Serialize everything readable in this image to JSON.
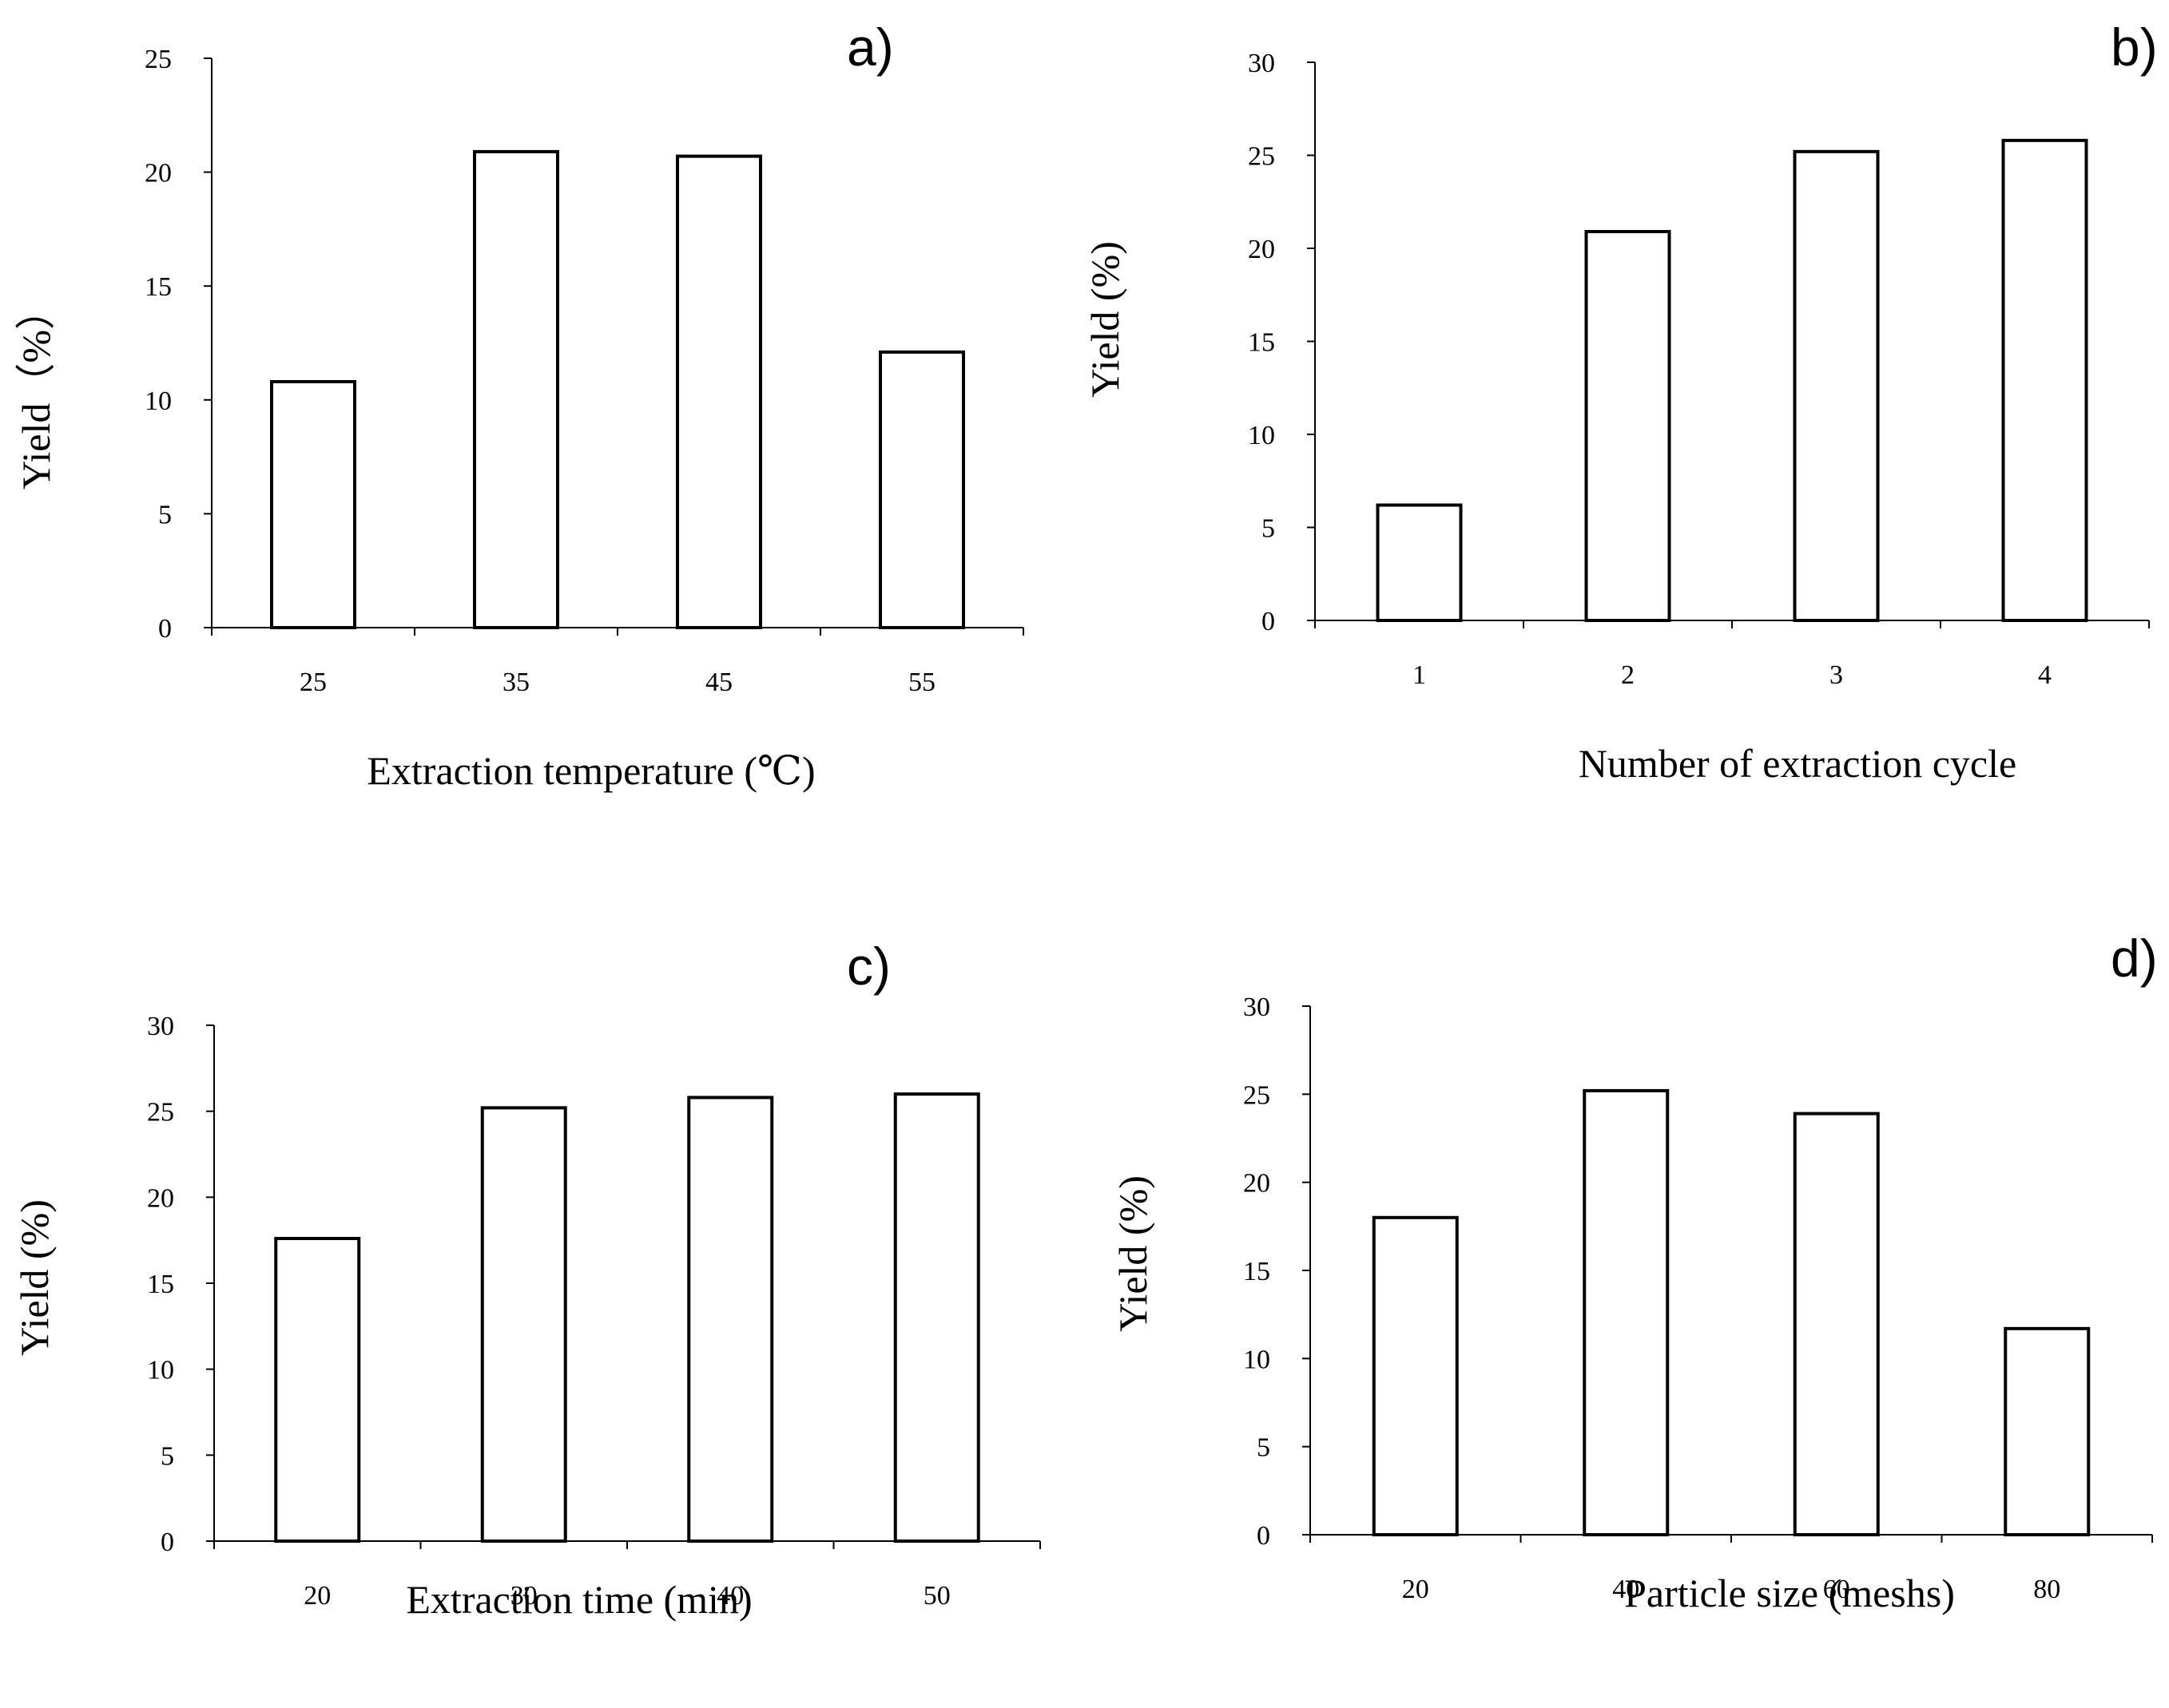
{
  "chart_data": [
    {
      "panel": "a)",
      "type": "bar",
      "categories": [
        "25",
        "35",
        "45",
        "55"
      ],
      "values": [
        10.8,
        20.9,
        20.7,
        12.1
      ],
      "xlabel": "Extraction temperature (℃)",
      "ylabel": "Yield（%）",
      "ylim": [
        0,
        25
      ],
      "yticks": [
        "0",
        "5",
        "10",
        "15",
        "20",
        "25"
      ],
      "grid": false
    },
    {
      "panel": "b)",
      "type": "bar",
      "categories": [
        "1",
        "2",
        "3",
        "4"
      ],
      "values": [
        6.2,
        20.9,
        25.2,
        25.8
      ],
      "xlabel": "Number of extraction cycle",
      "ylabel": "Yield (%)",
      "ylim": [
        0,
        30
      ],
      "yticks": [
        "0",
        "5",
        "10",
        "15",
        "20",
        "25",
        "30"
      ],
      "grid": false
    },
    {
      "panel": "c)",
      "type": "bar",
      "categories": [
        "20",
        "30",
        "40",
        "50"
      ],
      "values": [
        17.6,
        25.2,
        25.8,
        26.0
      ],
      "xlabel": "Extraction time (min)",
      "ylabel": "Yield (%)",
      "ylim": [
        0,
        30
      ],
      "yticks": [
        "0",
        "5",
        "10",
        "15",
        "20",
        "25",
        "30"
      ],
      "grid": false
    },
    {
      "panel": "d)",
      "type": "bar",
      "categories": [
        "20",
        "40",
        "60",
        "80"
      ],
      "values": [
        18.0,
        25.2,
        23.9,
        11.7
      ],
      "xlabel": "Particle size  (meshs)",
      "ylabel": "Yield (%)",
      "ylim": [
        0,
        30
      ],
      "yticks": [
        "0",
        "5",
        "10",
        "15",
        "20",
        "25",
        "30"
      ],
      "grid": false
    }
  ]
}
